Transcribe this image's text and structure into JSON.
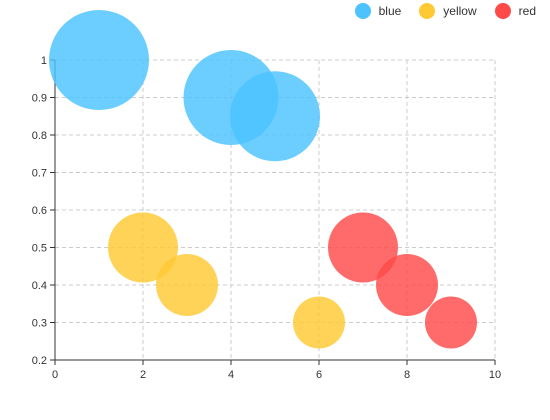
{
  "chart_data": {
    "type": "scatter",
    "xlim": [
      0,
      10
    ],
    "ylim": [
      0.2,
      1
    ],
    "x_ticks": [
      0,
      2,
      4,
      6,
      8,
      10
    ],
    "y_ticks": [
      0.2,
      0.3,
      0.4,
      0.5,
      0.6,
      0.7,
      0.8,
      0.9,
      1
    ],
    "x_tick_labels": [
      "0",
      "2",
      "4",
      "6",
      "8",
      "10"
    ],
    "y_tick_labels": [
      "0.2",
      "0.3",
      "0.4",
      "0.5",
      "0.6",
      "0.7",
      "0.8",
      "0.9",
      "1"
    ],
    "grid": true,
    "legend_position": "top-right",
    "series": [
      {
        "name": "blue",
        "color": "#4cc3ff",
        "points": [
          {
            "x": 1,
            "y": 1,
            "size": 100
          },
          {
            "x": 4,
            "y": 0.9,
            "size": 95
          },
          {
            "x": 5,
            "y": 0.85,
            "size": 90
          }
        ]
      },
      {
        "name": "yellow",
        "color": "#ffc933",
        "points": [
          {
            "x": 2,
            "y": 0.5,
            "size": 70
          },
          {
            "x": 3,
            "y": 0.4,
            "size": 62
          },
          {
            "x": 6,
            "y": 0.3,
            "size": 52
          }
        ]
      },
      {
        "name": "red",
        "color": "#ff4a4a",
        "points": [
          {
            "x": 7,
            "y": 0.5,
            "size": 70
          },
          {
            "x": 8,
            "y": 0.4,
            "size": 62
          },
          {
            "x": 9,
            "y": 0.3,
            "size": 52
          }
        ]
      }
    ]
  }
}
